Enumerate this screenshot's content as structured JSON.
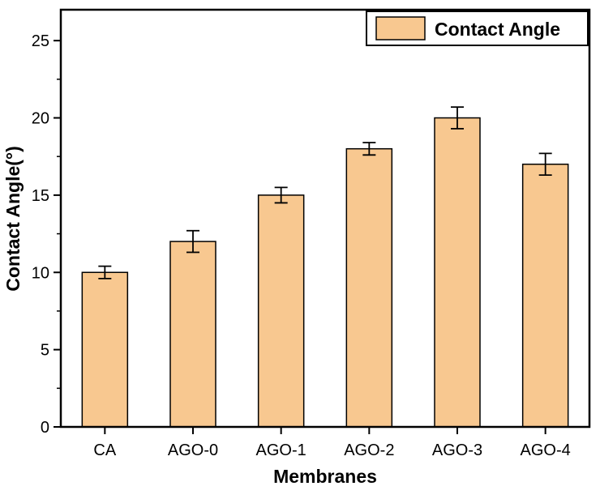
{
  "chart_data": {
    "type": "bar",
    "title": "",
    "xlabel": "Membranes",
    "ylabel": "Contact Angle(°)",
    "categories": [
      "CA",
      "AGO-0",
      "AGO-1",
      "AGO-2",
      "AGO-3",
      "AGO-4"
    ],
    "values": [
      10,
      12,
      15,
      18,
      20,
      17
    ],
    "errors": [
      0.4,
      0.7,
      0.5,
      0.4,
      0.7,
      0.7
    ],
    "ylim": [
      0,
      27
    ],
    "yticks": [
      0,
      5,
      10,
      15,
      20,
      25
    ],
    "minor_yticks": [
      2.5,
      7.5,
      12.5,
      17.5,
      22.5
    ],
    "grid": false,
    "legend": {
      "position": "top-right",
      "entries": [
        {
          "label": "Contact Angle",
          "color": "#F8C890"
        }
      ]
    },
    "colors": {
      "bar_fill": "#F8C890",
      "bar_stroke": "#000000",
      "axis": "#000000",
      "background": "#FFFFFF"
    }
  }
}
